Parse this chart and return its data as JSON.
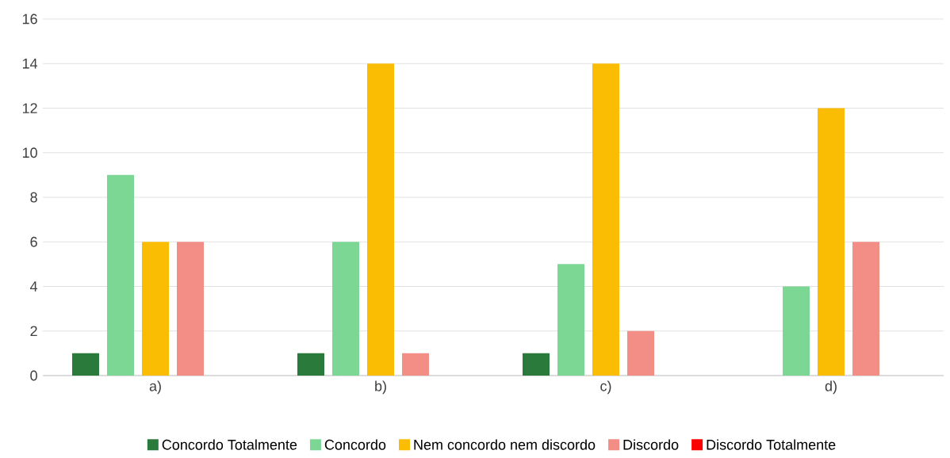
{
  "chart_data": {
    "type": "bar",
    "categories": [
      "a)",
      "b)",
      "c)",
      "d)"
    ],
    "series": [
      {
        "name": "Concordo Totalmente",
        "color": "#2a7a3b",
        "values": [
          1,
          1,
          1,
          0
        ]
      },
      {
        "name": "Concordo",
        "color": "#7dd794",
        "values": [
          9,
          6,
          5,
          4
        ]
      },
      {
        "name": "Nem concordo nem discordo",
        "color": "#fbbc04",
        "values": [
          6,
          14,
          14,
          12
        ]
      },
      {
        "name": "Discordo",
        "color": "#f28e86",
        "values": [
          6,
          1,
          2,
          6
        ]
      },
      {
        "name": "Discordo Totalmente",
        "color": "#ff0000",
        "values": [
          0,
          0,
          0,
          0
        ]
      }
    ],
    "ylim": [
      0,
      16
    ],
    "yticks": [
      0,
      2,
      4,
      6,
      8,
      10,
      12,
      14,
      16
    ],
    "grid": "y",
    "legend": "bottom"
  }
}
